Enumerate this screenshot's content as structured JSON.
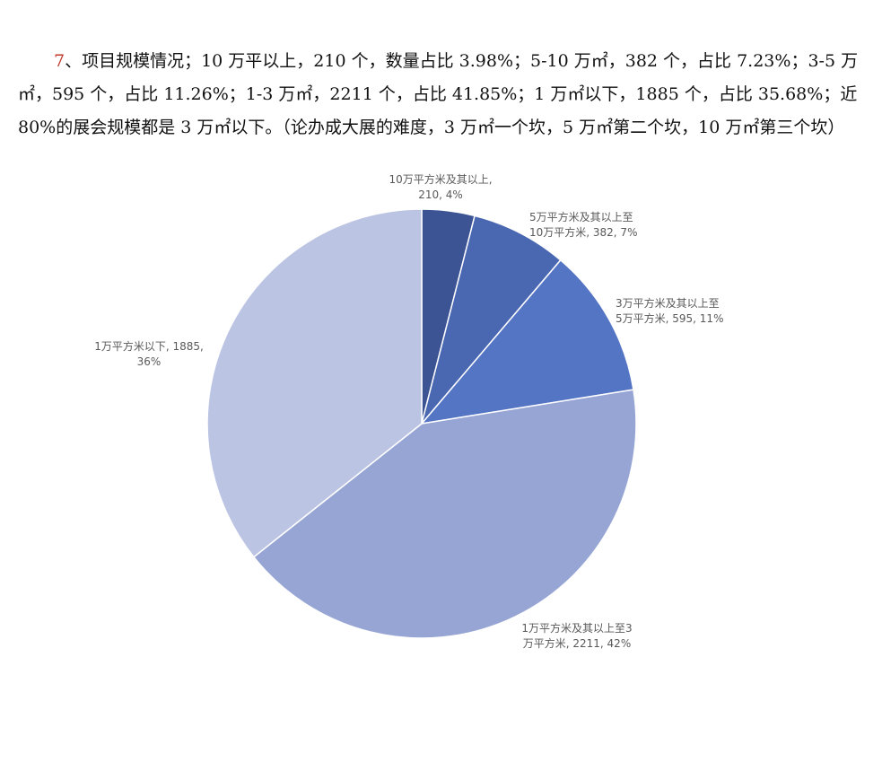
{
  "paragraph": {
    "number": "7",
    "text": "、项目规模情况；10 万平以上，210 个，数量占比 3.98%；5-10 万㎡，382 个，占比 7.23%；3-5 万㎡，595 个，占比 11.26%；1-3 万㎡，2211 个，占比 41.85%；1 万㎡以下，1885 个，占比 35.68%；近 80%的展会规模都是 3 万㎡以下。（论办成大展的难度，3 万㎡一个坎，5 万㎡第二个坎，10 万㎡第三个坎）"
  },
  "chart_data": {
    "type": "pie",
    "start_angle_deg": 0,
    "direction": "clockwise",
    "slices": [
      {
        "name": "10万平方米及其以上",
        "value": 210,
        "percent_label": "4%",
        "label_lines": [
          "10万平方米及其以上,",
          "210, 4%"
        ],
        "color": "#3d5494",
        "label_pos": "top"
      },
      {
        "name": "5万平方米及其以上至10万平方米",
        "value": 382,
        "percent_label": "7%",
        "label_lines": [
          "5万平方米及其以上至",
          "10万平方米, 382, 7%"
        ],
        "color": "#4a67b2",
        "label_pos": "top-right"
      },
      {
        "name": "3万平方米及其以上至5万平方米",
        "value": 595,
        "percent_label": "11%",
        "label_lines": [
          "3万平方米及其以上至",
          "5万平方米, 595, 11%"
        ],
        "color": "#5474c4",
        "label_pos": "right"
      },
      {
        "name": "1万平方米及其以上至3万平方米",
        "value": 2211,
        "percent_label": "42%",
        "label_lines": [
          "1万平方米及其以上至3",
          "万平方米, 2211, 42%"
        ],
        "color": "#96a5d4",
        "label_pos": "bottom-right"
      },
      {
        "name": "1万平方米以下",
        "value": 1885,
        "percent_label": "36%",
        "label_lines": [
          "1万平方米以下, 1885,",
          "36%"
        ],
        "color": "#bcc4e3",
        "label_pos": "left"
      }
    ]
  }
}
